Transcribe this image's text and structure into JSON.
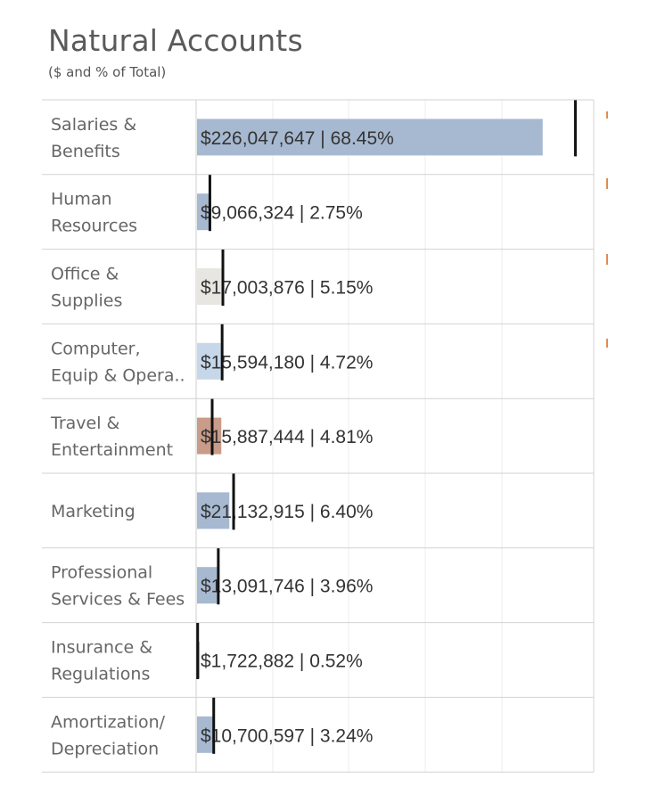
{
  "title": "Natural Accounts",
  "subtitle": "($ and % of Total)",
  "chart_data": {
    "type": "bar",
    "orientation": "horizontal",
    "title": "Natural Accounts",
    "subtitle": "($ and % of Total)",
    "xlim": [
      0,
      260000000
    ],
    "grid": true,
    "rows": [
      {
        "label": "Salaries & Benefits",
        "lines": [
          "Salaries &",
          "Benefits"
        ],
        "value": 226047647,
        "value_text": "$226,047,647",
        "pct_text": "68.45%",
        "target": 248000000,
        "color": "#a7b9d1"
      },
      {
        "label": "Human Resources",
        "lines": [
          "Human",
          "Resources"
        ],
        "value": 9066324,
        "value_text": "$9,066,324",
        "pct_text": "2.75%",
        "target": 9000000,
        "color": "#a7b9d1"
      },
      {
        "label": "Office & Supplies",
        "lines": [
          "Office &",
          "Supplies"
        ],
        "value": 17003876,
        "value_text": "$17,003,876",
        "pct_text": "5.15%",
        "target": 17500000,
        "color": "#e8e6e1"
      },
      {
        "label": "Computer, Equip & Opera..",
        "lines": [
          "Computer,",
          "Equip & Opera.."
        ],
        "value": 15594180,
        "value_text": "$15,594,180",
        "pct_text": "4.72%",
        "target": 17000000,
        "color": "#c6d7e9"
      },
      {
        "label": "Travel & Entertainment",
        "lines": [
          "Travel &",
          "Entertainment"
        ],
        "value": 15887444,
        "value_text": "$15,887,444",
        "pct_text": "4.81%",
        "target": 10500000,
        "color": "#c99b89"
      },
      {
        "label": "Marketing",
        "lines": [
          "Marketing"
        ],
        "value": 21132915,
        "value_text": "$21,132,915",
        "pct_text": "6.40%",
        "target": 24500000,
        "color": "#a7b9d1"
      },
      {
        "label": "Professional Services & Fees",
        "lines": [
          "Professional",
          "Services & Fees"
        ],
        "value": 13091746,
        "value_text": "$13,091,746",
        "pct_text": "3.96%",
        "target": 14500000,
        "color": "#a7b9d1"
      },
      {
        "label": "Insurance & Regulations",
        "lines": [
          "Insurance &",
          "Regulations"
        ],
        "value": 1722882,
        "value_text": "$1,722,882",
        "pct_text": "0.52%",
        "target": 1000000,
        "color": "#a7b9d1"
      },
      {
        "label": "Amortization/ Depreciation",
        "lines": [
          "Amortization/",
          "Depreciation"
        ],
        "value": 10700597,
        "value_text": "$10,700,597",
        "pct_text": "3.24%",
        "target": 11500000,
        "color": "#a7b9d1"
      }
    ]
  }
}
